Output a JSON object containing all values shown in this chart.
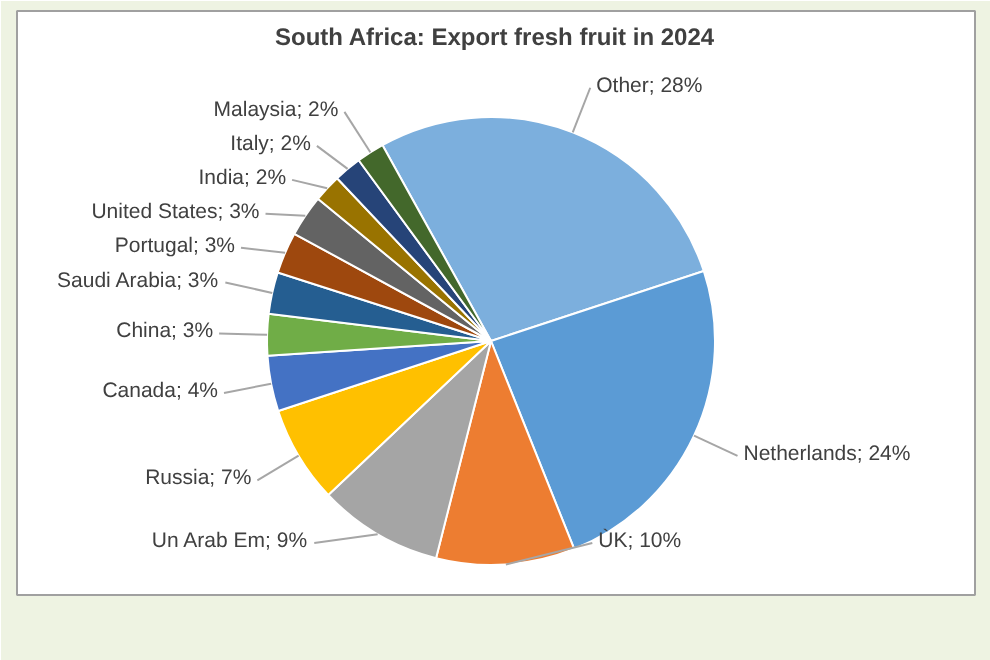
{
  "chart_data": {
    "type": "pie",
    "title": "South Africa: Export fresh fruit in 2024",
    "categories": [
      "Other",
      "Netherlands",
      "ÙK",
      "Un Arab Em",
      "Russia",
      "Canada",
      "China",
      "Saudi Arabia",
      "Portugal",
      "United States",
      "India",
      "Italy",
      "Malaysia"
    ],
    "values": [
      28,
      24,
      10,
      9,
      7,
      4,
      3,
      3,
      3,
      3,
      2,
      2,
      2
    ],
    "colors": [
      "#7cafdd",
      "#5b9bd5",
      "#ed7d31",
      "#a5a5a5",
      "#ffc000",
      "#4472c4",
      "#70ad47",
      "#255e91",
      "#9e480e",
      "#636363",
      "#997300",
      "#264478",
      "#43682b"
    ],
    "value_labels": [
      "28%",
      "24%",
      "10%",
      "9%",
      "7%",
      "4%",
      "3%",
      "3%",
      "3%",
      "3%",
      "2%",
      "2%",
      "2%"
    ]
  }
}
